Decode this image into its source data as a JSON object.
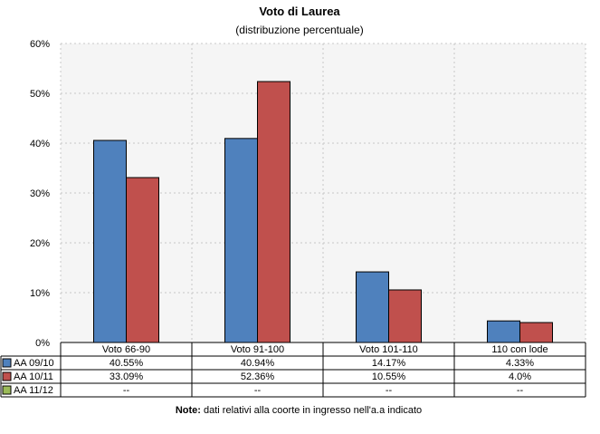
{
  "chart_data": {
    "type": "bar",
    "title": "Voto di Laurea",
    "subtitle": "(distribuzione percentuale)",
    "categories": [
      "Voto 66-90",
      "Voto 91-100",
      "Voto 101-110",
      "110 con lode"
    ],
    "ylim": [
      0,
      60
    ],
    "yticks": [
      0,
      10,
      20,
      30,
      40,
      50,
      60
    ],
    "ytick_labels": [
      "0%",
      "10%",
      "20%",
      "30%",
      "40%",
      "50%",
      "60%"
    ],
    "grid": true,
    "series": [
      {
        "name": "AA 09/10",
        "color": "#4f81bd",
        "values": [
          40.55,
          40.94,
          14.17,
          4.33
        ],
        "labels": [
          "40.55%",
          "40.94%",
          "14.17%",
          "4.33%"
        ]
      },
      {
        "name": "AA 10/11",
        "color": "#c0504d",
        "values": [
          33.09,
          52.36,
          10.55,
          4.0
        ],
        "labels": [
          "33.09%",
          "52.36%",
          "10.55%",
          "4.0%"
        ]
      },
      {
        "name": "AA 11/12",
        "color": "#9bbb59",
        "values": [
          null,
          null,
          null,
          null
        ],
        "labels": [
          "--",
          "--",
          "--",
          "--"
        ]
      }
    ],
    "note_bold": "Note:",
    "note": " dati relativi alla coorte in ingresso nell'a.a indicato"
  }
}
